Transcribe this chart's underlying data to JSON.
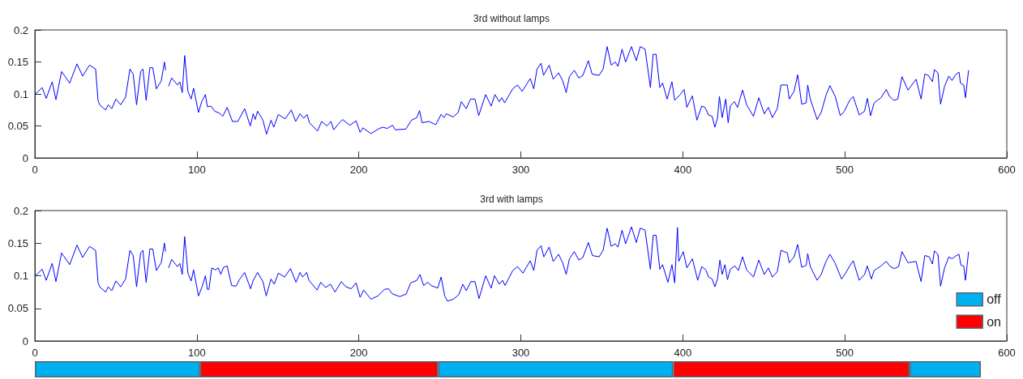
{
  "chart_data": [
    {
      "type": "line",
      "title": "3rd without lamps",
      "xlim": [
        0,
        600
      ],
      "xticks": [
        0,
        100,
        200,
        300,
        400,
        500,
        600
      ],
      "ylim": [
        0,
        0.2
      ],
      "yticks": [
        0,
        0.05,
        0.1,
        0.15,
        0.2
      ],
      "grid": false,
      "x": [
        0,
        4.5,
        7,
        10.7,
        13,
        16.5,
        21.5,
        26,
        29.5,
        33.7,
        37.5,
        39,
        40,
        43.7,
        45.3,
        47.5,
        50,
        53,
        56,
        58.7,
        60.7,
        62.8,
        65.3,
        66.7,
        68.7,
        71,
        72.8,
        75,
        78,
        80,
        80.7,
        82,
        82.5,
        84.5,
        88,
        89.5,
        91,
        92.5,
        94.5,
        96.5,
        98,
        101,
        103,
        105.3,
        106.5,
        108.7,
        111,
        114,
        116,
        118.7,
        122,
        125.3,
        129.5,
        133,
        134.8,
        136,
        137.5,
        140.8,
        143,
        145.8,
        147.5,
        150.3,
        154.5,
        158.3,
        161,
        163.7,
        166,
        168,
        169.5,
        174.5,
        177,
        180.3,
        182.8,
        184.5,
        187,
        190,
        194.5,
        198.3,
        200.8,
        202.5,
        207.5,
        212.5,
        215,
        217.5,
        220.8,
        222.5,
        229,
        232.5,
        235.8,
        237.5,
        239,
        243.3,
        247.5,
        250.8,
        252.5,
        254,
        258.3,
        261.3,
        263.3,
        266.3,
        269,
        271.7,
        274,
        278.3,
        281.7,
        284,
        286.7,
        288.3,
        290,
        295,
        298,
        300.8,
        305.8,
        308,
        310,
        312.5,
        314,
        317.5,
        320,
        323.3,
        325.8,
        328,
        330,
        333,
        335.8,
        338.3,
        341.7,
        344,
        348.3,
        350.8,
        353.3,
        355.8,
        358.3,
        360,
        362.5,
        364.7,
        368.3,
        371.3,
        373.7,
        376.7,
        380,
        381.7,
        383.5,
        385.8,
        387.5,
        390.3,
        393.3,
        395,
        398,
        400.8,
        402.5,
        405.9,
        408.7,
        411.7,
        413.7,
        415.9,
        418.1,
        419.8,
        421.4,
        422.6,
        424.3,
        426.5,
        428,
        429.3,
        431.8,
        433.8,
        436.9,
        439.4,
        443.6,
        446.9,
        450.3,
        452.8,
        455.3,
        458.3,
        460.6,
        464.5,
        465.7,
        468.7,
        470.9,
        473.4,
        476.2,
        477.1,
        478.7,
        482.9,
        485.4,
        488.4,
        490.8,
        494.1,
        497.2,
        499.7,
        503,
        505.2,
        508.9,
        512.2,
        513.9,
        515.9,
        518.1,
        522.3,
        525.6,
        527.6,
        530.3,
        532.7,
        535.3,
        539,
        544,
        547.1,
        549.4,
        551.6,
        554.1,
        555.3,
        557.5,
        559.1,
        561.6,
        564.2,
        566.2,
        568.3,
        570.5,
        571.4,
        573.4,
        574.5,
        575.5,
        576.4
      ],
      "series": [
        {
          "color": "#0000ff",
          "values": [
            0.099,
            0.11,
            0.093,
            0.119,
            0.091,
            0.135,
            0.117,
            0.147,
            0.128,
            0.145,
            0.139,
            0.09,
            0.083,
            0.075,
            0.083,
            0.077,
            0.092,
            0.083,
            0.095,
            0.139,
            0.131,
            0.083,
            0.135,
            0.139,
            0.09,
            0.141,
            0.141,
            0.108,
            0.12,
            0.15,
            0.137,
            null,
            0.112,
            0.125,
            0.114,
            0.119,
            0.102,
            0.16,
            0.104,
            0.092,
            0.109,
            0.071,
            0.088,
            0.099,
            0.08,
            0.081,
            0.073,
            0.07,
            0.065,
            0.079,
            0.057,
            0.057,
            0.077,
            0.05,
            0.069,
            0.06,
            0.073,
            0.059,
            0.037,
            0.059,
            0.048,
            0.068,
            0.061,
            0.075,
            0.057,
            0.069,
            0.062,
            0.068,
            0.055,
            0.042,
            0.057,
            0.05,
            0.057,
            0.044,
            0.052,
            0.06,
            0.051,
            0.058,
            0.04,
            0.047,
            0.038,
            0.046,
            0.048,
            0.046,
            0.051,
            0.044,
            0.045,
            0.059,
            0.063,
            0.074,
            0.055,
            0.057,
            0.052,
            0.068,
            0.063,
            0.069,
            0.064,
            0.071,
            0.088,
            0.077,
            0.092,
            0.092,
            0.066,
            0.099,
            0.081,
            0.099,
            0.088,
            0.094,
            0.086,
            0.108,
            0.114,
            0.104,
            0.124,
            0.108,
            0.139,
            0.148,
            0.129,
            0.145,
            0.123,
            0.133,
            0.121,
            0.102,
            0.127,
            0.137,
            0.125,
            0.129,
            0.152,
            0.131,
            0.129,
            0.139,
            0.174,
            0.145,
            0.15,
            0.143,
            0.17,
            0.15,
            0.174,
            0.152,
            0.174,
            0.17,
            0.11,
            0.162,
            0.162,
            0.11,
            0.117,
            0.092,
            0.119,
            0.09,
            0.098,
            0.107,
            0.079,
            0.097,
            0.059,
            0.081,
            0.079,
            0.067,
            0.065,
            0.048,
            0.062,
            0.096,
            0.063,
            0.092,
            0.055,
            0.081,
            0.088,
            0.079,
            0.106,
            0.083,
            0.065,
            0.094,
            0.069,
            0.079,
            0.063,
            0.077,
            0.114,
            0.114,
            0.092,
            0.104,
            0.13,
            0.084,
            0.086,
            0.114,
            0.092,
            0.06,
            0.071,
            0.098,
            0.113,
            0.096,
            0.066,
            0.073,
            0.09,
            0.096,
            0.067,
            0.073,
            0.093,
            0.066,
            0.086,
            0.094,
            0.107,
            0.096,
            0.09,
            0.092,
            0.127,
            0.106,
            0.123,
            0.092,
            0.131,
            0.129,
            0.119,
            0.138,
            0.133,
            0.084,
            0.112,
            0.128,
            0.121,
            0.13,
            0.134,
            0.117,
            0.114,
            0.094,
            0.117,
            0.137
          ]
        }
      ]
    },
    {
      "type": "line",
      "title": "3rd with lamps",
      "xlim": [
        0,
        600
      ],
      "xticks": [
        0,
        100,
        200,
        300,
        400,
        500,
        600
      ],
      "ylim": [
        0,
        0.2
      ],
      "yticks": [
        0,
        0.05,
        0.1,
        0.15,
        0.2
      ],
      "grid": false,
      "x": [
        0,
        4.5,
        7,
        10.7,
        13,
        16.5,
        21.5,
        26,
        29.5,
        33.7,
        37.5,
        39,
        40,
        43.7,
        45.3,
        47.5,
        50,
        53,
        56,
        58.7,
        60.7,
        62.8,
        65.3,
        66.7,
        68.7,
        71,
        72.8,
        75,
        78,
        80,
        80.7,
        82,
        82.5,
        84.5,
        88,
        89.5,
        91,
        92.5,
        94.5,
        96.5,
        98,
        101,
        103.2,
        105.3,
        106.5,
        107.5,
        109.2,
        111.5,
        113.2,
        114.8,
        116.5,
        118.7,
        121.5,
        124.2,
        126.5,
        129.5,
        133.2,
        134.8,
        137.5,
        140.8,
        142.8,
        145.8,
        147.8,
        150.3,
        154.2,
        157.8,
        161.2,
        163.7,
        165.3,
        167.8,
        169.2,
        174.2,
        176.5,
        179.5,
        182.5,
        185.3,
        189.2,
        192,
        195.3,
        198.3,
        200.8,
        203,
        207.5,
        211.7,
        215.8,
        218.3,
        220.8,
        225.3,
        229.2,
        232,
        235.8,
        237.7,
        240,
        242.5,
        244.7,
        248.7,
        250.8,
        253,
        254.7,
        258.3,
        261.7,
        264.2,
        266.3,
        269.2,
        271.7,
        274.2,
        278.3,
        281.7,
        283.7,
        286.7,
        288.7,
        290.3,
        295,
        298,
        301.3,
        305.8,
        308,
        310,
        312.5,
        314.2,
        317.5,
        320,
        323.3,
        325.8,
        328,
        330,
        333,
        335.8,
        338.3,
        341.7,
        344.2,
        348.3,
        350.8,
        353.3,
        355.8,
        358.3,
        360,
        362.5,
        364.7,
        368.3,
        371.3,
        373.7,
        376.7,
        380,
        381.7,
        383.5,
        385.8,
        387.5,
        390.8,
        393.3,
        395,
        396.7,
        397.5,
        400.3,
        402.5,
        405.9,
        409.2,
        411.7,
        414.2,
        415.9,
        418.1,
        419.8,
        421.4,
        422.9,
        424.3,
        426,
        427.6,
        429.3,
        432.2,
        434.3,
        436.9,
        439.4,
        443.6,
        446.9,
        450.3,
        452.8,
        455.3,
        458.3,
        460.6,
        464.5,
        465.7,
        468.7,
        470.9,
        473.4,
        476.2,
        477.1,
        478.7,
        482.9,
        485.4,
        488.4,
        490.8,
        494.1,
        498,
        500.5,
        503,
        505.2,
        508.9,
        512.2,
        513.9,
        516.4,
        518.1,
        522.3,
        525.6,
        528.1,
        530.7,
        533.2,
        535.3,
        539,
        544,
        547.1,
        549.4,
        552.1,
        554.1,
        555.3,
        557.5,
        559.1,
        561.6,
        564.2,
        566.2,
        568.3,
        570.5,
        571.7,
        573.4,
        574.5,
        575.5,
        576.4
      ],
      "series": [
        {
          "color": "#0000ff",
          "values": [
            0.099,
            0.11,
            0.093,
            0.119,
            0.091,
            0.135,
            0.117,
            0.147,
            0.128,
            0.145,
            0.139,
            0.09,
            0.083,
            0.075,
            0.083,
            0.077,
            0.092,
            0.083,
            0.095,
            0.139,
            0.131,
            0.083,
            0.135,
            0.139,
            0.09,
            0.141,
            0.141,
            0.108,
            0.12,
            0.15,
            0.137,
            null,
            0.112,
            0.125,
            0.114,
            0.119,
            0.102,
            0.16,
            0.104,
            0.092,
            0.109,
            0.069,
            0.083,
            0.1,
            0.079,
            0.079,
            0.112,
            0.109,
            0.112,
            0.102,
            0.113,
            0.115,
            0.085,
            0.084,
            0.095,
            0.105,
            0.08,
            0.093,
            0.105,
            0.091,
            0.069,
            0.095,
            0.087,
            0.104,
            0.098,
            0.111,
            0.09,
            0.105,
            0.098,
            0.105,
            0.093,
            0.078,
            0.09,
            0.082,
            0.087,
            0.075,
            0.091,
            0.083,
            0.08,
            0.089,
            0.067,
            0.078,
            0.064,
            0.069,
            0.079,
            0.08,
            0.072,
            0.068,
            0.072,
            0.089,
            0.093,
            0.102,
            0.085,
            0.09,
            0.085,
            0.081,
            0.098,
            0.069,
            0.061,
            0.064,
            0.071,
            0.087,
            0.077,
            0.091,
            0.091,
            0.065,
            0.1,
            0.081,
            0.1,
            0.087,
            0.093,
            0.085,
            0.108,
            0.114,
            0.104,
            0.123,
            0.108,
            0.139,
            0.146,
            0.129,
            0.144,
            0.122,
            0.133,
            0.12,
            0.102,
            0.126,
            0.137,
            0.124,
            0.128,
            0.151,
            0.131,
            0.129,
            0.139,
            0.173,
            0.145,
            0.149,
            0.144,
            0.17,
            0.149,
            0.175,
            0.151,
            0.173,
            0.17,
            0.11,
            0.162,
            0.162,
            0.11,
            0.117,
            0.09,
            0.117,
            0.089,
            0.174,
            0.122,
            0.137,
            0.112,
            0.126,
            0.093,
            0.114,
            0.109,
            0.098,
            0.095,
            0.083,
            0.095,
            0.124,
            0.102,
            0.117,
            0.094,
            0.11,
            0.115,
            0.108,
            0.129,
            0.109,
            0.098,
            0.124,
            0.102,
            0.112,
            0.098,
            0.106,
            0.139,
            0.135,
            0.12,
            0.129,
            0.148,
            0.113,
            0.116,
            0.134,
            0.114,
            0.093,
            0.102,
            0.122,
            0.133,
            0.119,
            0.095,
            0.104,
            0.115,
            0.123,
            0.093,
            0.102,
            0.115,
            0.095,
            0.108,
            0.115,
            0.122,
            0.114,
            0.111,
            0.114,
            0.137,
            0.12,
            0.122,
            0.091,
            0.131,
            0.129,
            0.118,
            0.138,
            0.133,
            0.084,
            0.112,
            0.129,
            0.126,
            0.13,
            0.133,
            0.116,
            0.115,
            0.093,
            0.116,
            0.137
          ]
        }
      ]
    },
    {
      "type": "bar",
      "orientation": "horizontal",
      "stacked": true,
      "categories": [
        null
      ],
      "xlim": [
        0,
        600
      ],
      "tick_labels": false,
      "legend": "top right",
      "series": [
        {
          "name": "off",
          "color": "#00b0f0",
          "values": [
            102
          ]
        },
        {
          "name": "on",
          "color": "#ff0000",
          "values": [
            147
          ]
        },
        {
          "color": "#00b0f0",
          "values": [
            145
          ]
        },
        {
          "color": "#ff0000",
          "values": [
            146
          ]
        },
        {
          "color": "#00b0f0",
          "values": [
            44
          ]
        }
      ]
    }
  ]
}
